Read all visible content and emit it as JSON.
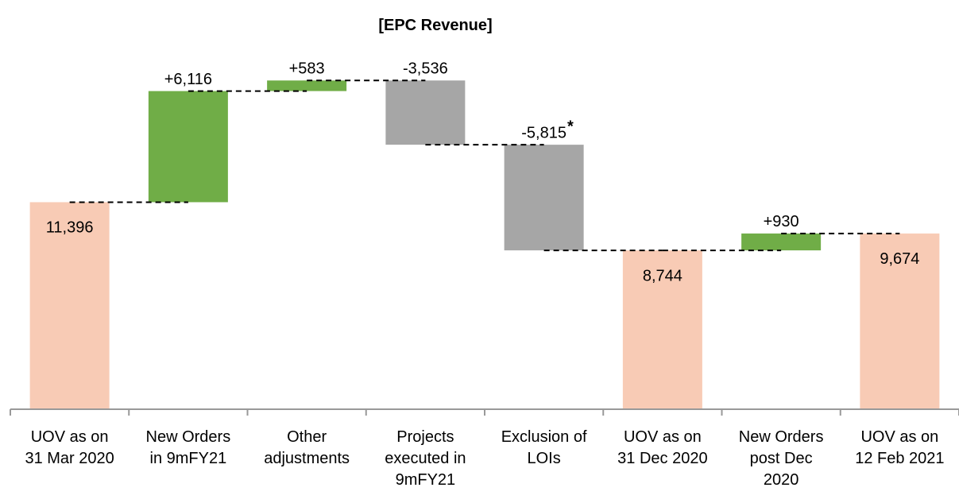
{
  "chart_data": {
    "type": "waterfall",
    "title": "[EPC Revenue]",
    "categories": [
      "UOV as on\n31 Mar 2020",
      "New Orders\nin 9mFY21",
      "Other\nadjustments",
      "Projects\nexecuted in\n9mFY21",
      "Exclusion of\nLOIs",
      "UOV as on\n31 Dec 2020",
      "New Orders\npost Dec\n2020",
      "UOV as on\n12 Feb 2021"
    ],
    "values": [
      11396,
      6116,
      583,
      -3536,
      -5815,
      8744,
      930,
      9674
    ],
    "value_labels": [
      "11,396",
      "+6,116",
      "+583",
      "-3,536",
      "-5,815",
      "8,744",
      "+930",
      "9,674"
    ],
    "is_total": [
      true,
      false,
      false,
      false,
      false,
      true,
      false,
      true
    ],
    "colors": [
      "#f8cbb5",
      "#70ad47",
      "#70ad47",
      "#a6a6a6",
      "#a6a6a6",
      "#f8cbb5",
      "#70ad47",
      "#f8cbb5"
    ],
    "annotations": [
      {
        "index": 4,
        "text": "*"
      }
    ],
    "ylim": [
      0,
      22000
    ]
  }
}
